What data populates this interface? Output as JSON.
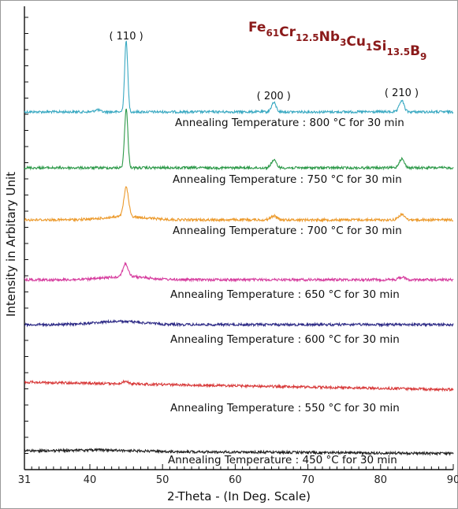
{
  "chart_data": {
    "type": "line",
    "title_parts": [
      {
        "text": "Fe",
        "sub": "61"
      },
      {
        "text": "Cr",
        "sub": "12.5"
      },
      {
        "text": "Nb",
        "sub": "3"
      },
      {
        "text": "Cu",
        "sub": "1"
      },
      {
        "text": "Si",
        "sub": "13.5"
      },
      {
        "text": "B",
        "sub": "9"
      }
    ],
    "xlabel": "2-Theta - (In Deg. Scale)",
    "ylabel": "Intensity in Arbitary Unit",
    "xlim": [
      31,
      90
    ],
    "x_ticks": [
      31,
      40,
      50,
      60,
      70,
      80,
      90
    ],
    "colors": {
      "title": "#8b1a1a",
      "s800": "#3aa9c2",
      "s750": "#2e9a4a",
      "s700": "#ec9a2c",
      "s650": "#d63c9e",
      "s600": "#2d2a86",
      "s550": "#d83a3a",
      "s450": "#222222"
    },
    "peak_labels": [
      {
        "text": "( 110 )",
        "x": 45.0
      },
      {
        "text": "( 200 )",
        "x": 65.3
      },
      {
        "text": "( 210 )",
        "x": 82.9
      }
    ],
    "series": [
      {
        "label": "Annealing Temperature : 800 °C for 30 min",
        "color_key": "s800",
        "peaks": [
          [
            45.0,
            1.0,
            0.3
          ],
          [
            65.3,
            0.13,
            0.45
          ],
          [
            82.9,
            0.16,
            0.45
          ],
          [
            41.0,
            0.03,
            0.5
          ]
        ],
        "broad": []
      },
      {
        "label": "Annealing Temperature : 750 °C for 30 min",
        "color_key": "s750",
        "peaks": [
          [
            45.0,
            0.85,
            0.32
          ],
          [
            65.3,
            0.11,
            0.5
          ],
          [
            82.9,
            0.13,
            0.5
          ]
        ],
        "broad": []
      },
      {
        "label": "Annealing Temperature : 700 °C for 30 min",
        "color_key": "s700",
        "peaks": [
          [
            45.0,
            0.45,
            0.45
          ],
          [
            65.3,
            0.06,
            0.6
          ],
          [
            82.9,
            0.08,
            0.6
          ]
        ],
        "broad": [
          [
            45.0,
            0.05,
            4.0
          ]
        ]
      },
      {
        "label": "Annealing Temperature : 650 °C for 30 min",
        "color_key": "s650",
        "peaks": [
          [
            44.9,
            0.2,
            0.5
          ],
          [
            82.9,
            0.04,
            0.6
          ]
        ],
        "broad": [
          [
            45.0,
            0.05,
            4.0
          ]
        ]
      },
      {
        "label": "Annealing Temperature : 600 °C for 30 min",
        "color_key": "s600",
        "peaks": [],
        "broad": [
          [
            44.0,
            0.1,
            4.5
          ]
        ]
      },
      {
        "label": "Annealing Temperature : 550 °C for 30 min",
        "color_key": "s550",
        "peaks": [
          [
            44.9,
            0.08,
            0.6
          ]
        ],
        "broad": [],
        "slope": -0.004
      },
      {
        "label": "Annealing Temperature : 450 °C for 30 min",
        "color_key": "s450",
        "peaks": [],
        "broad": [
          [
            42.0,
            0.05,
            5.0
          ]
        ],
        "slope": -0.002
      }
    ]
  }
}
